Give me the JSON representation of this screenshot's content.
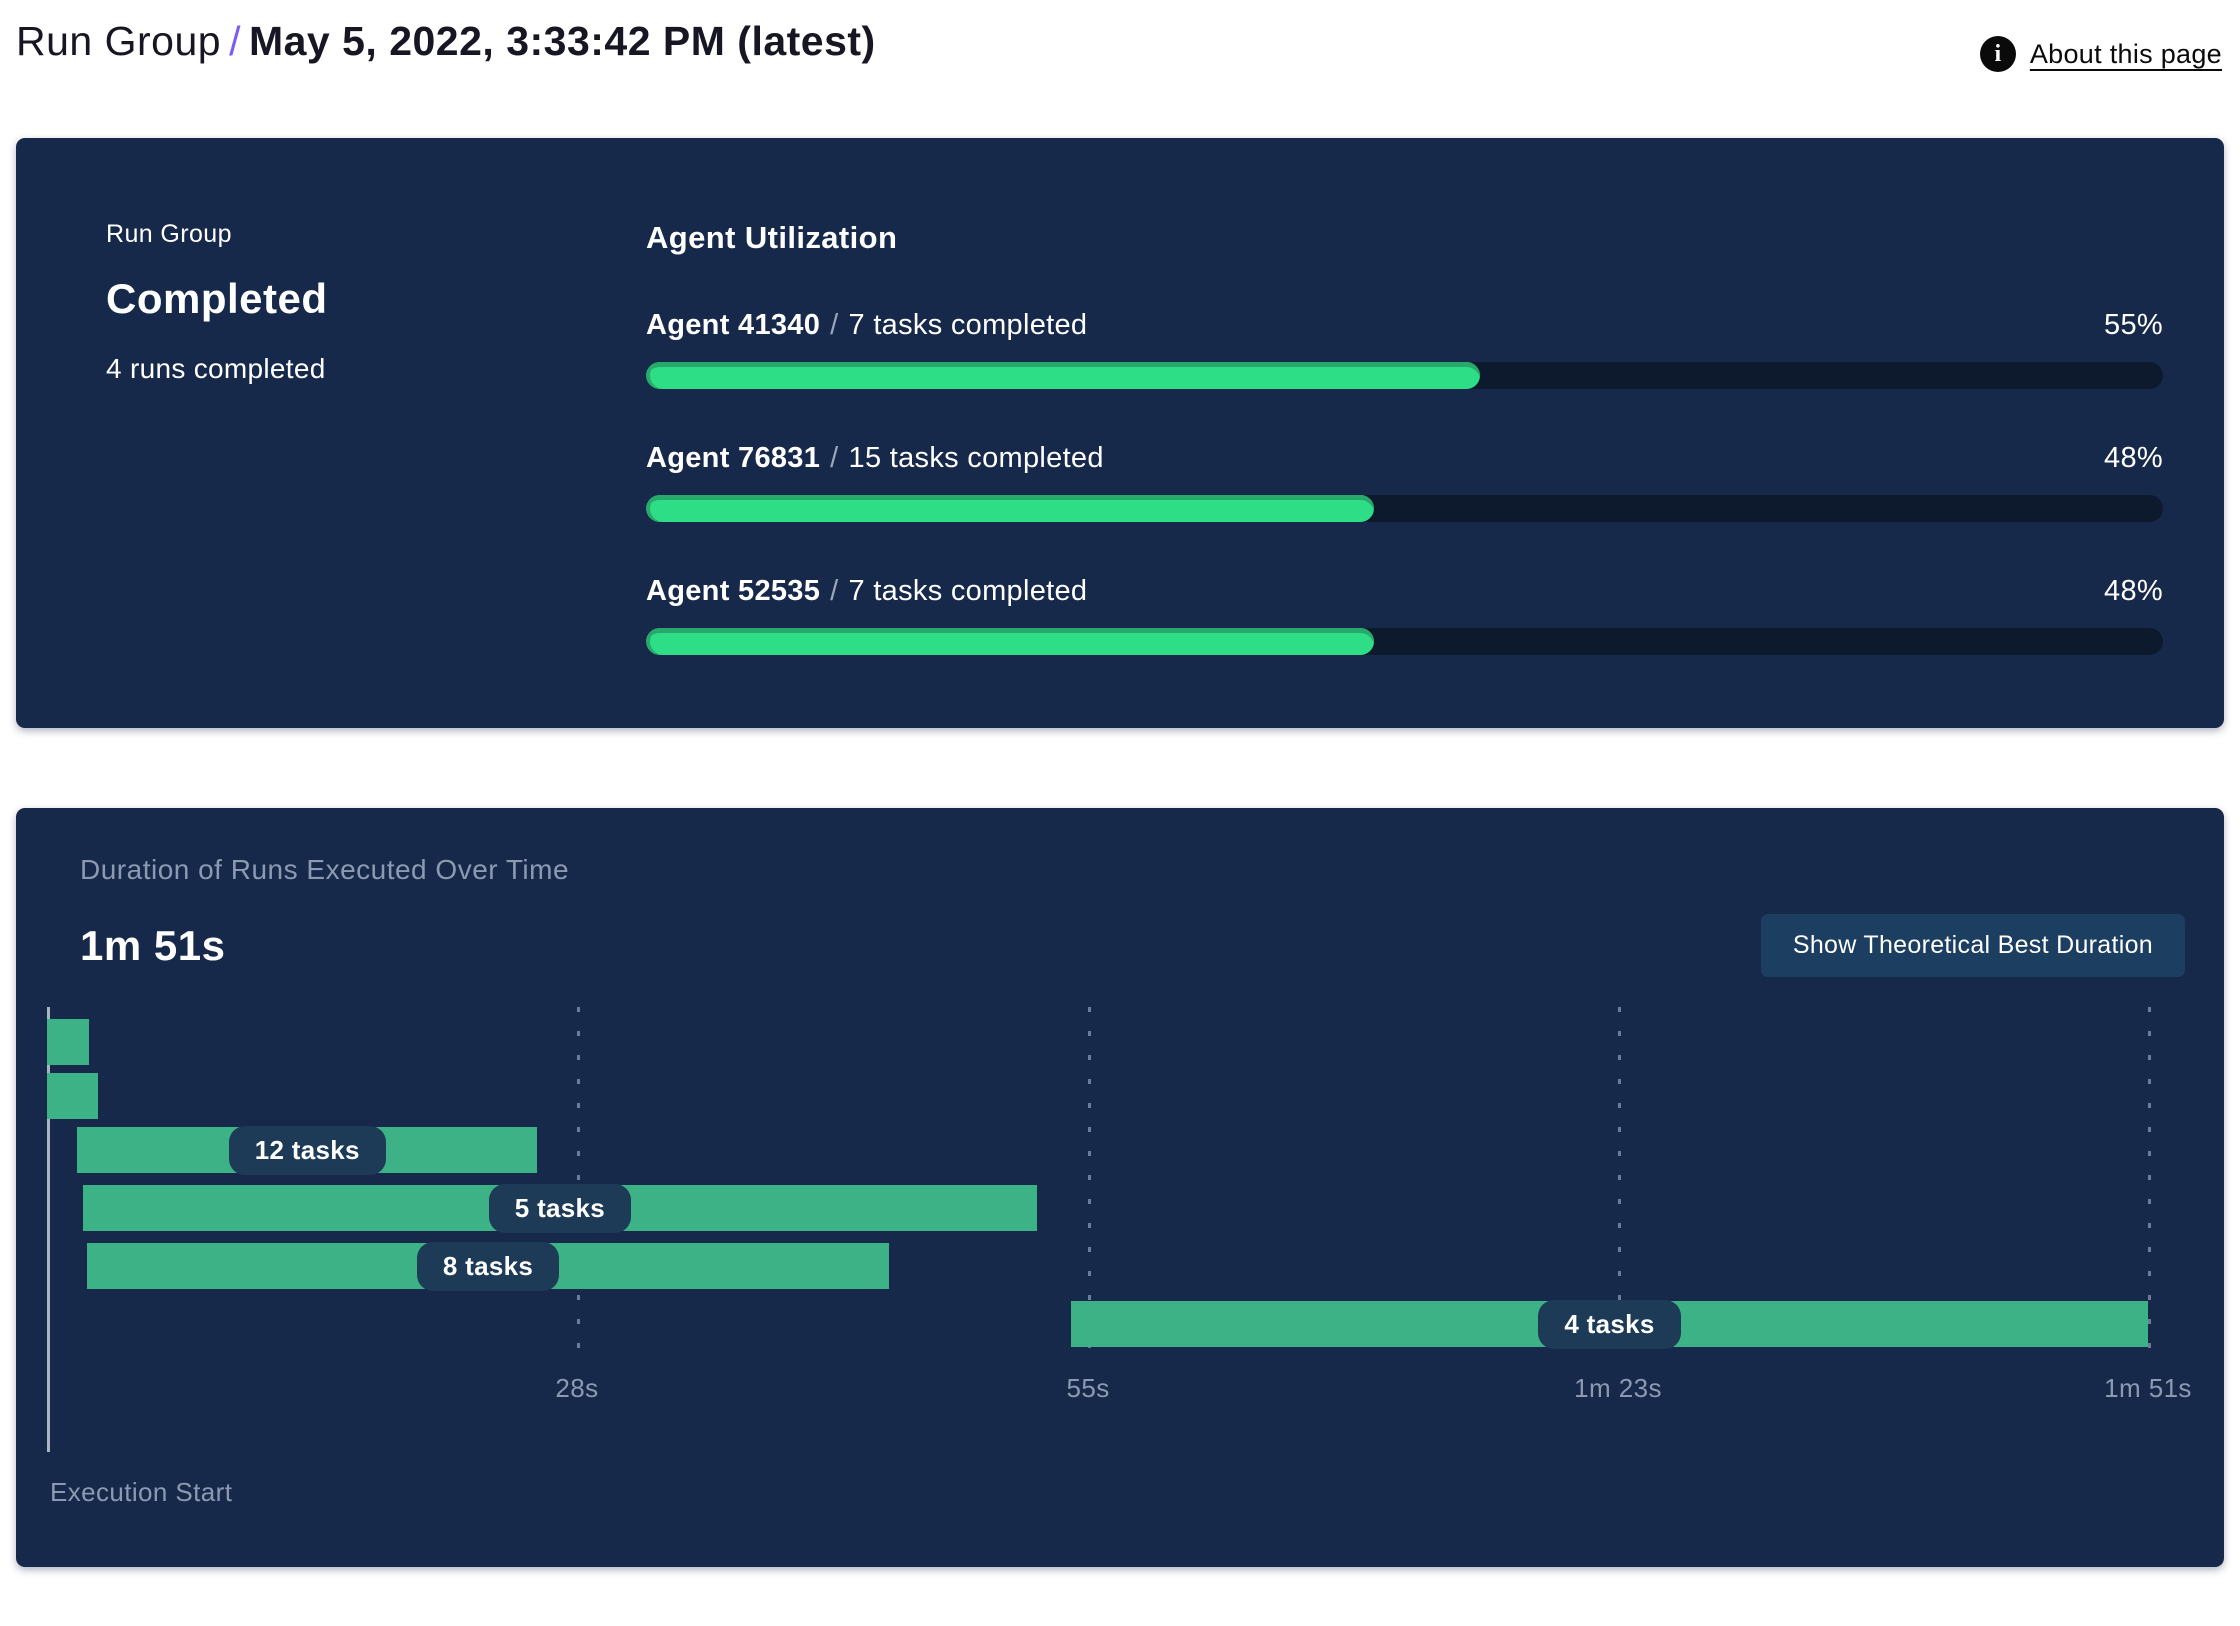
{
  "header": {
    "breadcrumb": "Run Group",
    "separator": "/",
    "title": "May 5, 2022, 3:33:42 PM (latest)",
    "info_icon_glyph": "i",
    "about_link": "About this page"
  },
  "run_group_panel": {
    "label": "Run Group",
    "status": "Completed",
    "runs_summary": "4 runs completed",
    "section_title": "Agent Utilization",
    "name_tasks_separator": "/",
    "agents": [
      {
        "name": "Agent 41340",
        "tasks": "7 tasks completed",
        "percent": 55,
        "percent_label": "55%"
      },
      {
        "name": "Agent 76831",
        "tasks": "15 tasks completed",
        "percent": 48,
        "percent_label": "48%"
      },
      {
        "name": "Agent 52535",
        "tasks": "7 tasks completed",
        "percent": 48,
        "percent_label": "48%"
      }
    ]
  },
  "duration_panel": {
    "subtitle": "Duration of Runs Executed Over Time",
    "total_duration": "1m 51s",
    "button_label": "Show Theoretical Best Duration",
    "execution_start_label": "Execution Start"
  },
  "chart_data": {
    "type": "gantt",
    "title": "Duration of Runs Executed Over Time",
    "x_unit": "seconds",
    "x_max": 111,
    "x_ticks": [
      {
        "value": 28,
        "label": "28s"
      },
      {
        "value": 55,
        "label": "55s"
      },
      {
        "value": 83,
        "label": "1m 23s"
      },
      {
        "value": 111,
        "label": "1m 51s"
      }
    ],
    "bars": [
      {
        "start": 0,
        "end": 2.2,
        "label": ""
      },
      {
        "start": 0,
        "end": 2.7,
        "label": ""
      },
      {
        "start": 1.6,
        "end": 25.9,
        "label": "12 tasks"
      },
      {
        "start": 1.9,
        "end": 52.3,
        "label": "5 tasks"
      },
      {
        "start": 2.1,
        "end": 44.5,
        "label": "8 tasks"
      },
      {
        "start": 54.1,
        "end": 111,
        "label": "4 tasks"
      }
    ],
    "legend": false,
    "grid": "vertical-dashed"
  },
  "colors": {
    "panel_bg": "#17294A",
    "progress_fill": "#2EDE87",
    "progress_track": "#0D1A2D",
    "gantt_bar": "#3EB287",
    "pill_bg": "#1D3A57",
    "muted_text": "#8C9AB1",
    "slash_purple": "#7B5CF5",
    "button_bg": "#1C3E60"
  }
}
